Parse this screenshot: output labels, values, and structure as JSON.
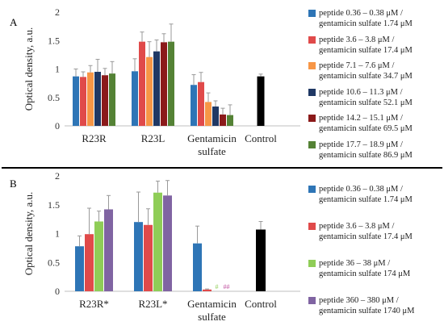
{
  "panel_labels": [
    "A",
    "B"
  ],
  "colors": {
    "blue": "#2e75b6",
    "red": "#e04a4a",
    "orange": "#f79646",
    "navy": "#1f3864",
    "darkred": "#8b1a1a",
    "green": "#548235",
    "lightgreen": "#8fcd57",
    "purple": "#8064a2",
    "black": "#000000"
  },
  "chart_data": [
    {
      "type": "bar",
      "panel": "A",
      "ylabel": "Optical density, a.u.",
      "ylim": [
        0,
        2
      ],
      "yticks": [
        "0",
        "0.5",
        "1",
        "1.5",
        "2"
      ],
      "grid": false,
      "legend_position": "right",
      "categories": [
        {
          "lines": [
            "R23R"
          ]
        },
        {
          "lines": [
            "R23L"
          ]
        },
        {
          "lines": [
            "Gentamicin",
            "sulfate"
          ]
        },
        {
          "lines": [
            "Control"
          ]
        }
      ],
      "series": [
        {
          "name_lines": [
            "peptide 0.36 – 0.38 μM /",
            "gentamicin sulfate 1.74 μM"
          ],
          "color": "#2e75b6",
          "values": [
            0.87,
            0.96,
            0.72,
            null
          ],
          "errors": [
            0.13,
            0.22,
            0.18,
            null
          ]
        },
        {
          "name_lines": [
            "peptide 3.6 – 3.8 μM /",
            "gentamicin sulfate 17.4 μM"
          ],
          "color": "#e04a4a",
          "values": [
            0.86,
            1.48,
            0.77,
            null
          ],
          "errors": [
            0.09,
            0.17,
            0.17,
            null
          ]
        },
        {
          "name_lines": [
            "peptide 7.1 – 7.6 μM /",
            "gentamicin sulfate 34.7 μM"
          ],
          "color": "#f79646",
          "values": [
            0.94,
            1.21,
            0.42,
            null
          ],
          "errors": [
            0.12,
            0.27,
            0.16,
            null
          ]
        },
        {
          "name_lines": [
            "peptide 10.6 – 11.3 μM /",
            "gentamicin sulfate 52.1 μM"
          ],
          "color": "#1f3864",
          "values": [
            0.95,
            1.31,
            0.34,
            null
          ],
          "errors": [
            0.22,
            0.2,
            0.1,
            null
          ]
        },
        {
          "name_lines": [
            "peptide 14.2 – 15.1 μM /",
            "gentamicin sulfate 69.5 μM"
          ],
          "color": "#8b1a1a",
          "values": [
            0.89,
            1.47,
            0.2,
            null
          ],
          "errors": [
            0.12,
            0.15,
            0.11,
            null
          ]
        },
        {
          "name_lines": [
            "peptide 17.7 – 18.9 μM /",
            "gentamicin sulfate 86.9 μM"
          ],
          "color": "#548235",
          "values": [
            0.92,
            1.48,
            0.19,
            null
          ],
          "errors": [
            0.21,
            0.31,
            0.18,
            null
          ]
        }
      ],
      "control": {
        "value": 0.87,
        "error": 0.04,
        "color": "#000000"
      }
    },
    {
      "type": "bar",
      "panel": "B",
      "ylabel": "Optical density, a.u.",
      "ylim": [
        0,
        2
      ],
      "yticks": [
        "0",
        "0.5",
        "1",
        "1.5",
        "2"
      ],
      "grid": false,
      "legend_position": "right",
      "categories": [
        {
          "lines": [
            "R23R*"
          ]
        },
        {
          "lines": [
            "R23L*"
          ]
        },
        {
          "lines": [
            "Gentamicin",
            "sulfate"
          ]
        },
        {
          "lines": [
            "Control"
          ]
        }
      ],
      "series": [
        {
          "name_lines": [
            "peptide 0.36 – 0.38 μM /",
            "gentamicin sulfate 1.74 μM"
          ],
          "color": "#2e75b6",
          "values": [
            0.78,
            1.2,
            0.83,
            null
          ],
          "errors": [
            0.18,
            0.52,
            0.3,
            null
          ]
        },
        {
          "name_lines": [
            "peptide 3.6 – 3.8 μM /",
            "gentamicin sulfate 17.4 μM"
          ],
          "color": "#e04a4a",
          "values": [
            0.99,
            1.15,
            0.03,
            null
          ],
          "errors": [
            0.45,
            0.28,
            0.01,
            null
          ]
        },
        {
          "name_lines": [
            "peptide 36 – 38 μM /",
            "gentamicin sulfate 174 μM"
          ],
          "color": "#8fcd57",
          "values": [
            1.21,
            1.71,
            0.0,
            null
          ],
          "errors": [
            0.18,
            0.2,
            0,
            null
          ]
        },
        {
          "name_lines": [
            "peptide 360 – 380 μM /",
            "gentamicin sulfate 1740 μM"
          ],
          "color": "#8064a2",
          "values": [
            1.42,
            1.66,
            0.0,
            null
          ],
          "errors": [
            0.24,
            0.26,
            0,
            null
          ]
        }
      ],
      "control": {
        "value": 1.07,
        "error": 0.14,
        "color": "#000000"
      },
      "annotations": [
        {
          "text": "#",
          "series": 2,
          "category": 2,
          "color": "#8fcd57"
        },
        {
          "text": "##",
          "series": 3,
          "category": 2,
          "color": "#c050a0"
        }
      ]
    }
  ]
}
